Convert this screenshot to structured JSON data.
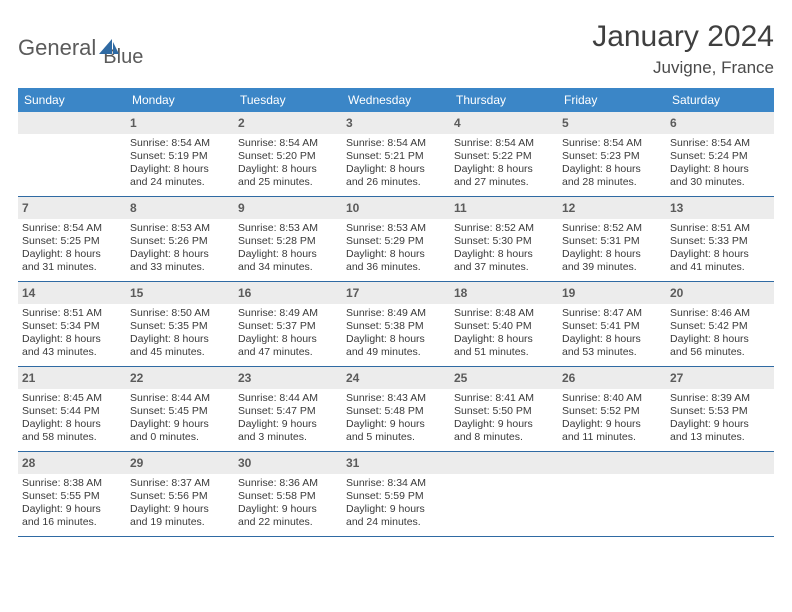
{
  "brand": {
    "word1": "General",
    "word2": "Blue"
  },
  "title": "January 2024",
  "location": "Juvigne, France",
  "colors": {
    "header_bg": "#3b86c7",
    "header_text": "#ffffff",
    "rule": "#2f6aa3",
    "daynum_bg": "#ececec",
    "body_text": "#3a3a3a",
    "logo_blue": "#2f6aa3"
  },
  "dow": [
    "Sunday",
    "Monday",
    "Tuesday",
    "Wednesday",
    "Thursday",
    "Friday",
    "Saturday"
  ],
  "weeks": [
    [
      null,
      {
        "n": "1",
        "sr": "Sunrise: 8:54 AM",
        "ss": "Sunset: 5:19 PM",
        "d1": "Daylight: 8 hours",
        "d2": "and 24 minutes."
      },
      {
        "n": "2",
        "sr": "Sunrise: 8:54 AM",
        "ss": "Sunset: 5:20 PM",
        "d1": "Daylight: 8 hours",
        "d2": "and 25 minutes."
      },
      {
        "n": "3",
        "sr": "Sunrise: 8:54 AM",
        "ss": "Sunset: 5:21 PM",
        "d1": "Daylight: 8 hours",
        "d2": "and 26 minutes."
      },
      {
        "n": "4",
        "sr": "Sunrise: 8:54 AM",
        "ss": "Sunset: 5:22 PM",
        "d1": "Daylight: 8 hours",
        "d2": "and 27 minutes."
      },
      {
        "n": "5",
        "sr": "Sunrise: 8:54 AM",
        "ss": "Sunset: 5:23 PM",
        "d1": "Daylight: 8 hours",
        "d2": "and 28 minutes."
      },
      {
        "n": "6",
        "sr": "Sunrise: 8:54 AM",
        "ss": "Sunset: 5:24 PM",
        "d1": "Daylight: 8 hours",
        "d2": "and 30 minutes."
      }
    ],
    [
      {
        "n": "7",
        "sr": "Sunrise: 8:54 AM",
        "ss": "Sunset: 5:25 PM",
        "d1": "Daylight: 8 hours",
        "d2": "and 31 minutes."
      },
      {
        "n": "8",
        "sr": "Sunrise: 8:53 AM",
        "ss": "Sunset: 5:26 PM",
        "d1": "Daylight: 8 hours",
        "d2": "and 33 minutes."
      },
      {
        "n": "9",
        "sr": "Sunrise: 8:53 AM",
        "ss": "Sunset: 5:28 PM",
        "d1": "Daylight: 8 hours",
        "d2": "and 34 minutes."
      },
      {
        "n": "10",
        "sr": "Sunrise: 8:53 AM",
        "ss": "Sunset: 5:29 PM",
        "d1": "Daylight: 8 hours",
        "d2": "and 36 minutes."
      },
      {
        "n": "11",
        "sr": "Sunrise: 8:52 AM",
        "ss": "Sunset: 5:30 PM",
        "d1": "Daylight: 8 hours",
        "d2": "and 37 minutes."
      },
      {
        "n": "12",
        "sr": "Sunrise: 8:52 AM",
        "ss": "Sunset: 5:31 PM",
        "d1": "Daylight: 8 hours",
        "d2": "and 39 minutes."
      },
      {
        "n": "13",
        "sr": "Sunrise: 8:51 AM",
        "ss": "Sunset: 5:33 PM",
        "d1": "Daylight: 8 hours",
        "d2": "and 41 minutes."
      }
    ],
    [
      {
        "n": "14",
        "sr": "Sunrise: 8:51 AM",
        "ss": "Sunset: 5:34 PM",
        "d1": "Daylight: 8 hours",
        "d2": "and 43 minutes."
      },
      {
        "n": "15",
        "sr": "Sunrise: 8:50 AM",
        "ss": "Sunset: 5:35 PM",
        "d1": "Daylight: 8 hours",
        "d2": "and 45 minutes."
      },
      {
        "n": "16",
        "sr": "Sunrise: 8:49 AM",
        "ss": "Sunset: 5:37 PM",
        "d1": "Daylight: 8 hours",
        "d2": "and 47 minutes."
      },
      {
        "n": "17",
        "sr": "Sunrise: 8:49 AM",
        "ss": "Sunset: 5:38 PM",
        "d1": "Daylight: 8 hours",
        "d2": "and 49 minutes."
      },
      {
        "n": "18",
        "sr": "Sunrise: 8:48 AM",
        "ss": "Sunset: 5:40 PM",
        "d1": "Daylight: 8 hours",
        "d2": "and 51 minutes."
      },
      {
        "n": "19",
        "sr": "Sunrise: 8:47 AM",
        "ss": "Sunset: 5:41 PM",
        "d1": "Daylight: 8 hours",
        "d2": "and 53 minutes."
      },
      {
        "n": "20",
        "sr": "Sunrise: 8:46 AM",
        "ss": "Sunset: 5:42 PM",
        "d1": "Daylight: 8 hours",
        "d2": "and 56 minutes."
      }
    ],
    [
      {
        "n": "21",
        "sr": "Sunrise: 8:45 AM",
        "ss": "Sunset: 5:44 PM",
        "d1": "Daylight: 8 hours",
        "d2": "and 58 minutes."
      },
      {
        "n": "22",
        "sr": "Sunrise: 8:44 AM",
        "ss": "Sunset: 5:45 PM",
        "d1": "Daylight: 9 hours",
        "d2": "and 0 minutes."
      },
      {
        "n": "23",
        "sr": "Sunrise: 8:44 AM",
        "ss": "Sunset: 5:47 PM",
        "d1": "Daylight: 9 hours",
        "d2": "and 3 minutes."
      },
      {
        "n": "24",
        "sr": "Sunrise: 8:43 AM",
        "ss": "Sunset: 5:48 PM",
        "d1": "Daylight: 9 hours",
        "d2": "and 5 minutes."
      },
      {
        "n": "25",
        "sr": "Sunrise: 8:41 AM",
        "ss": "Sunset: 5:50 PM",
        "d1": "Daylight: 9 hours",
        "d2": "and 8 minutes."
      },
      {
        "n": "26",
        "sr": "Sunrise: 8:40 AM",
        "ss": "Sunset: 5:52 PM",
        "d1": "Daylight: 9 hours",
        "d2": "and 11 minutes."
      },
      {
        "n": "27",
        "sr": "Sunrise: 8:39 AM",
        "ss": "Sunset: 5:53 PM",
        "d1": "Daylight: 9 hours",
        "d2": "and 13 minutes."
      }
    ],
    [
      {
        "n": "28",
        "sr": "Sunrise: 8:38 AM",
        "ss": "Sunset: 5:55 PM",
        "d1": "Daylight: 9 hours",
        "d2": "and 16 minutes."
      },
      {
        "n": "29",
        "sr": "Sunrise: 8:37 AM",
        "ss": "Sunset: 5:56 PM",
        "d1": "Daylight: 9 hours",
        "d2": "and 19 minutes."
      },
      {
        "n": "30",
        "sr": "Sunrise: 8:36 AM",
        "ss": "Sunset: 5:58 PM",
        "d1": "Daylight: 9 hours",
        "d2": "and 22 minutes."
      },
      {
        "n": "31",
        "sr": "Sunrise: 8:34 AM",
        "ss": "Sunset: 5:59 PM",
        "d1": "Daylight: 9 hours",
        "d2": "and 24 minutes."
      },
      null,
      null,
      null
    ]
  ]
}
